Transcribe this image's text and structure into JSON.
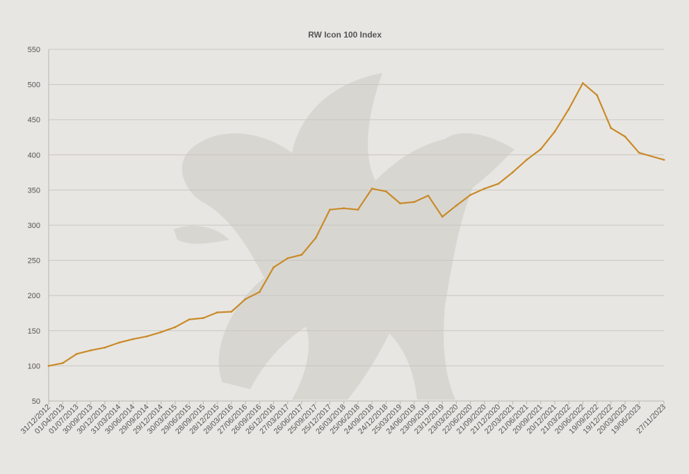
{
  "chart_data": {
    "type": "line",
    "title": "RW Icon 100 Index",
    "xlabel": "",
    "ylabel": "",
    "ylim": [
      50,
      550
    ],
    "yticks": [
      50,
      100,
      150,
      200,
      250,
      300,
      350,
      400,
      450,
      500,
      550
    ],
    "grid": true,
    "legend": "none",
    "colors": {
      "line": "#c98a28",
      "grid": "#c9c6c1",
      "background": "#e8e6e2"
    },
    "watermark": "griffin-emblem",
    "x_tick_labels": [
      "31/12/2012",
      "01/04/2013",
      "01/07/2013",
      "30/09/2013",
      "30/12/2013",
      "31/03/2014",
      "30/06/2014",
      "29/09/2014",
      "29/12/2014",
      "30/03/2015",
      "29/06/2015",
      "28/09/2015",
      "28/12/2015",
      "28/03/2016",
      "27/06/2016",
      "26/09/2016",
      "26/12/2016",
      "27/03/2017",
      "26/06/2017",
      "25/09/2017",
      "25/12/2017",
      "26/03/2018",
      "25/06/2018",
      "24/09/2018",
      "24/12/2018",
      "25/03/2019",
      "24/06/2019",
      "23/09/2019",
      "23/12/2019",
      "23/03/2020",
      "22/06/2020",
      "21/09/2020",
      "21/12/2020",
      "22/03/2021",
      "21/06/2021",
      "20/09/2021",
      "20/12/2021",
      "21/03/2022",
      "20/06/2022",
      "19/09/2022",
      "19/12/2022",
      "20/03/2023",
      "19/06/2023",
      "27/11/2023"
    ],
    "series": [
      {
        "values": [
          {
            "x": "31/12/2012",
            "y": 100
          },
          {
            "x": "01/04/2013",
            "y": 104
          },
          {
            "x": "01/07/2013",
            "y": 117
          },
          {
            "x": "30/09/2013",
            "y": 122
          },
          {
            "x": "30/12/2013",
            "y": 126
          },
          {
            "x": "31/03/2014",
            "y": 133
          },
          {
            "x": "30/06/2014",
            "y": 138
          },
          {
            "x": "29/09/2014",
            "y": 142
          },
          {
            "x": "29/12/2014",
            "y": 148
          },
          {
            "x": "30/03/2015",
            "y": 155
          },
          {
            "x": "29/06/2015",
            "y": 166
          },
          {
            "x": "28/09/2015",
            "y": 168
          },
          {
            "x": "28/12/2015",
            "y": 176
          },
          {
            "x": "28/03/2016",
            "y": 177
          },
          {
            "x": "27/06/2016",
            "y": 195
          },
          {
            "x": "26/09/2016",
            "y": 205
          },
          {
            "x": "26/12/2016",
            "y": 240
          },
          {
            "x": "27/03/2017",
            "y": 253
          },
          {
            "x": "26/06/2017",
            "y": 258
          },
          {
            "x": "25/09/2017",
            "y": 282
          },
          {
            "x": "25/12/2017",
            "y": 322
          },
          {
            "x": "26/03/2018",
            "y": 324
          },
          {
            "x": "25/06/2018",
            "y": 322
          },
          {
            "x": "24/09/2018",
            "y": 352
          },
          {
            "x": "24/12/2018",
            "y": 348
          },
          {
            "x": "25/03/2019",
            "y": 331
          },
          {
            "x": "24/06/2019",
            "y": 333
          },
          {
            "x": "23/09/2019",
            "y": 342
          },
          {
            "x": "23/12/2019",
            "y": 312
          },
          {
            "x": "23/03/2020",
            "y": 328
          },
          {
            "x": "22/06/2020",
            "y": 343
          },
          {
            "x": "21/09/2020",
            "y": 352
          },
          {
            "x": "21/12/2020",
            "y": 359
          },
          {
            "x": "22/03/2021",
            "y": 375
          },
          {
            "x": "21/06/2021",
            "y": 393
          },
          {
            "x": "20/09/2021",
            "y": 408
          },
          {
            "x": "20/12/2021",
            "y": 433
          },
          {
            "x": "21/03/2022",
            "y": 465
          },
          {
            "x": "20/06/2022",
            "y": 502
          },
          {
            "x": "19/09/2022",
            "y": 485
          },
          {
            "x": "19/12/2022",
            "y": 438
          },
          {
            "x": "20/03/2023",
            "y": 426
          },
          {
            "x": "19/06/2023",
            "y": 403
          },
          {
            "x": "27/11/2023",
            "y": 393
          }
        ]
      }
    ]
  }
}
